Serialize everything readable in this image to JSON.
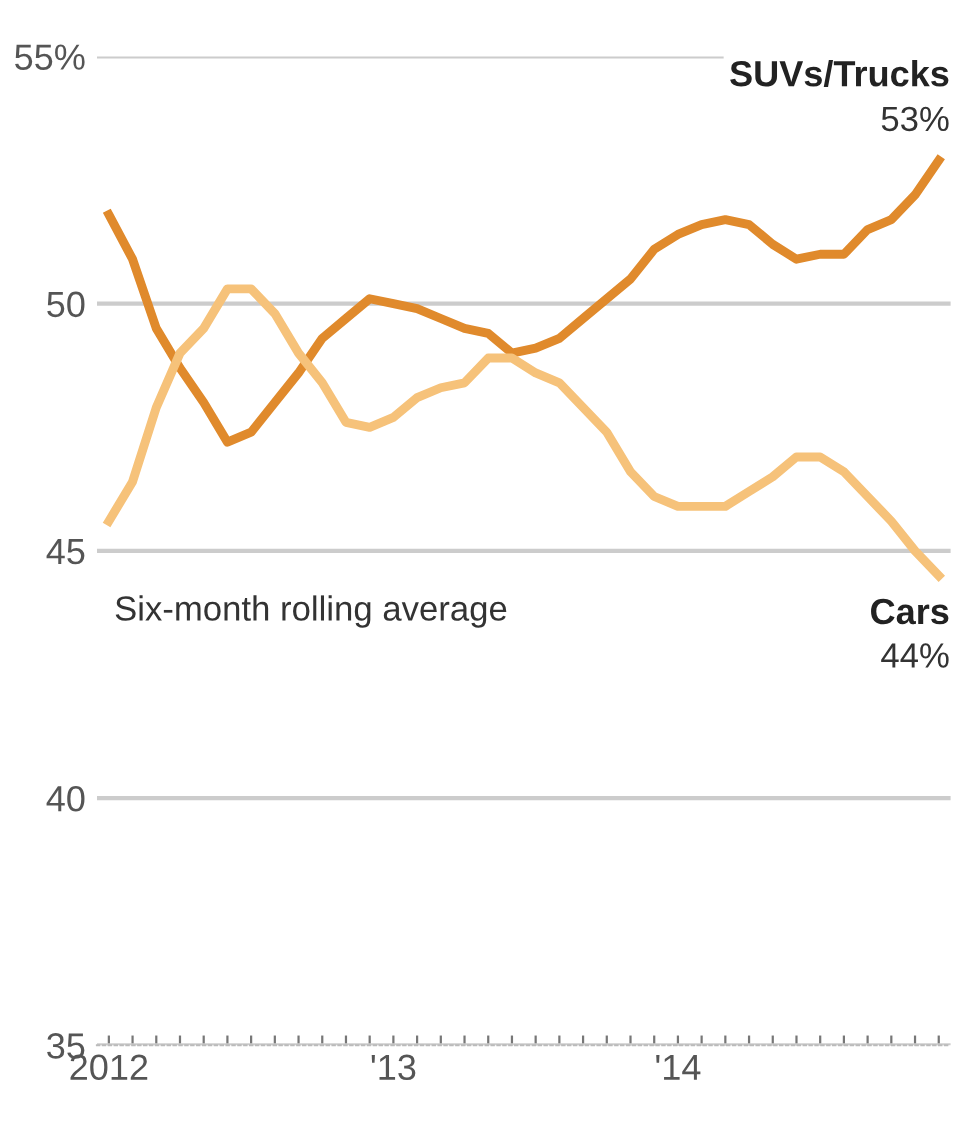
{
  "chart_data": {
    "type": "line",
    "categories": [
      "2012",
      null,
      null,
      null,
      null,
      null,
      null,
      null,
      null,
      null,
      null,
      null,
      "'13",
      null,
      null,
      null,
      null,
      null,
      null,
      null,
      null,
      null,
      null,
      null,
      "'14",
      null,
      null,
      null,
      null,
      null,
      null,
      null,
      null,
      null,
      null,
      null
    ],
    "series": [
      {
        "name": "SUVs/Trucks",
        "color": "#e08a2c",
        "values": [
          51.8,
          50.9,
          49.5,
          48.7,
          48.0,
          47.2,
          47.4,
          48.0,
          48.6,
          49.3,
          49.7,
          50.1,
          50.0,
          49.9,
          49.7,
          49.5,
          49.4,
          49.0,
          49.1,
          49.3,
          49.7,
          50.1,
          50.5,
          51.1,
          51.4,
          51.6,
          51.7,
          51.6,
          51.2,
          50.9,
          51.0,
          51.0,
          51.5,
          51.7,
          52.2,
          52.9
        ],
        "value_labels": [
          null,
          null,
          null,
          null,
          null,
          null,
          null,
          null,
          null,
          null,
          null,
          null,
          null,
          null,
          null,
          null,
          null,
          null,
          null,
          null,
          null,
          null,
          null,
          null,
          null,
          null,
          null,
          null,
          null,
          null,
          null,
          null,
          null,
          null,
          null,
          "53%"
        ]
      },
      {
        "name": "Cars",
        "color": "#f6c27a",
        "values": [
          45.6,
          46.4,
          47.9,
          49.0,
          49.5,
          50.3,
          50.3,
          49.8,
          49.0,
          48.4,
          47.6,
          47.5,
          47.7,
          48.1,
          48.3,
          48.4,
          48.9,
          48.9,
          48.6,
          48.4,
          47.9,
          47.4,
          46.6,
          46.1,
          45.9,
          45.9,
          45.9,
          46.2,
          46.5,
          46.9,
          46.9,
          46.6,
          46.1,
          45.6,
          45.0,
          44.5
        ],
        "value_labels": [
          null,
          null,
          null,
          null,
          null,
          null,
          null,
          null,
          null,
          null,
          null,
          null,
          null,
          null,
          null,
          null,
          null,
          null,
          null,
          null,
          null,
          null,
          null,
          null,
          null,
          null,
          null,
          null,
          null,
          null,
          null,
          null,
          null,
          null,
          null,
          "44%"
        ]
      }
    ],
    "annotations": [
      "Six-month rolling average"
    ],
    "ylim": [
      35,
      55
    ],
    "yticks": [
      35,
      40,
      45,
      50,
      {
        "value": 55,
        "label": "55%"
      }
    ],
    "grid": "y",
    "legend": false,
    "marker": "none",
    "line_style": "solid"
  }
}
